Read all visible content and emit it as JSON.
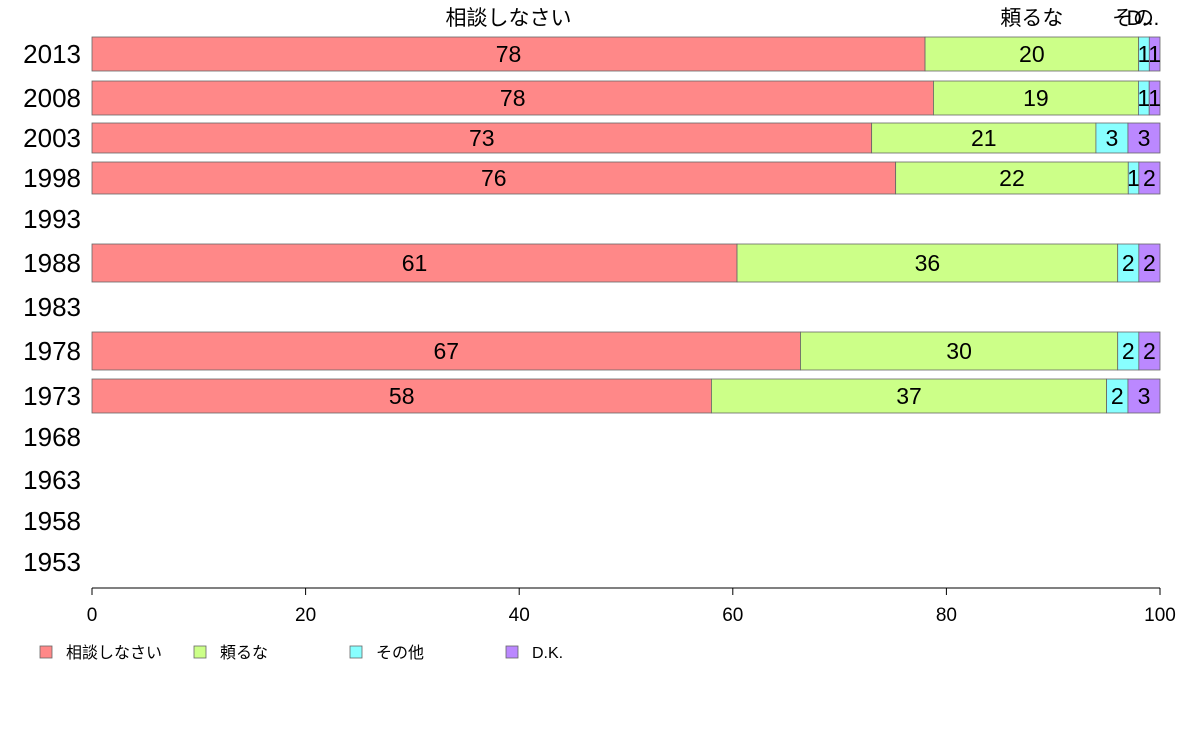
{
  "chart_data": {
    "type": "bar",
    "orientation": "horizontal",
    "stacked": true,
    "categories": [
      "2013",
      "2008",
      "2003",
      "1998",
      "1993",
      "1988",
      "1983",
      "1978",
      "1973",
      "1968",
      "1963",
      "1958",
      "1953"
    ],
    "series": [
      {
        "name": "相談しなさい",
        "values": [
          78,
          78,
          73,
          76,
          null,
          61,
          null,
          67,
          58,
          null,
          null,
          null,
          null
        ]
      },
      {
        "name": "頼るな",
        "values": [
          20,
          19,
          21,
          22,
          null,
          36,
          null,
          30,
          37,
          null,
          null,
          null,
          null
        ]
      },
      {
        "name": "その他",
        "values": [
          1,
          1,
          3,
          1,
          null,
          2,
          null,
          2,
          2,
          null,
          null,
          null,
          null
        ]
      },
      {
        "name": "D.K.",
        "values": [
          1,
          1,
          3,
          2,
          null,
          2,
          null,
          2,
          3,
          null,
          null,
          null,
          null
        ]
      }
    ],
    "top_headers": [
      "相談しなさい",
      "頼るな",
      "その",
      "D..."
    ],
    "xlim": [
      0,
      100
    ],
    "xticks": [
      "0",
      "20",
      "40",
      "60",
      "80",
      "100"
    ],
    "legend": {
      "position": "bottom-left"
    },
    "grid": false,
    "colors": [
      "#ff8888",
      "#ccff88",
      "#88ffff",
      "#bb88ff"
    ]
  }
}
